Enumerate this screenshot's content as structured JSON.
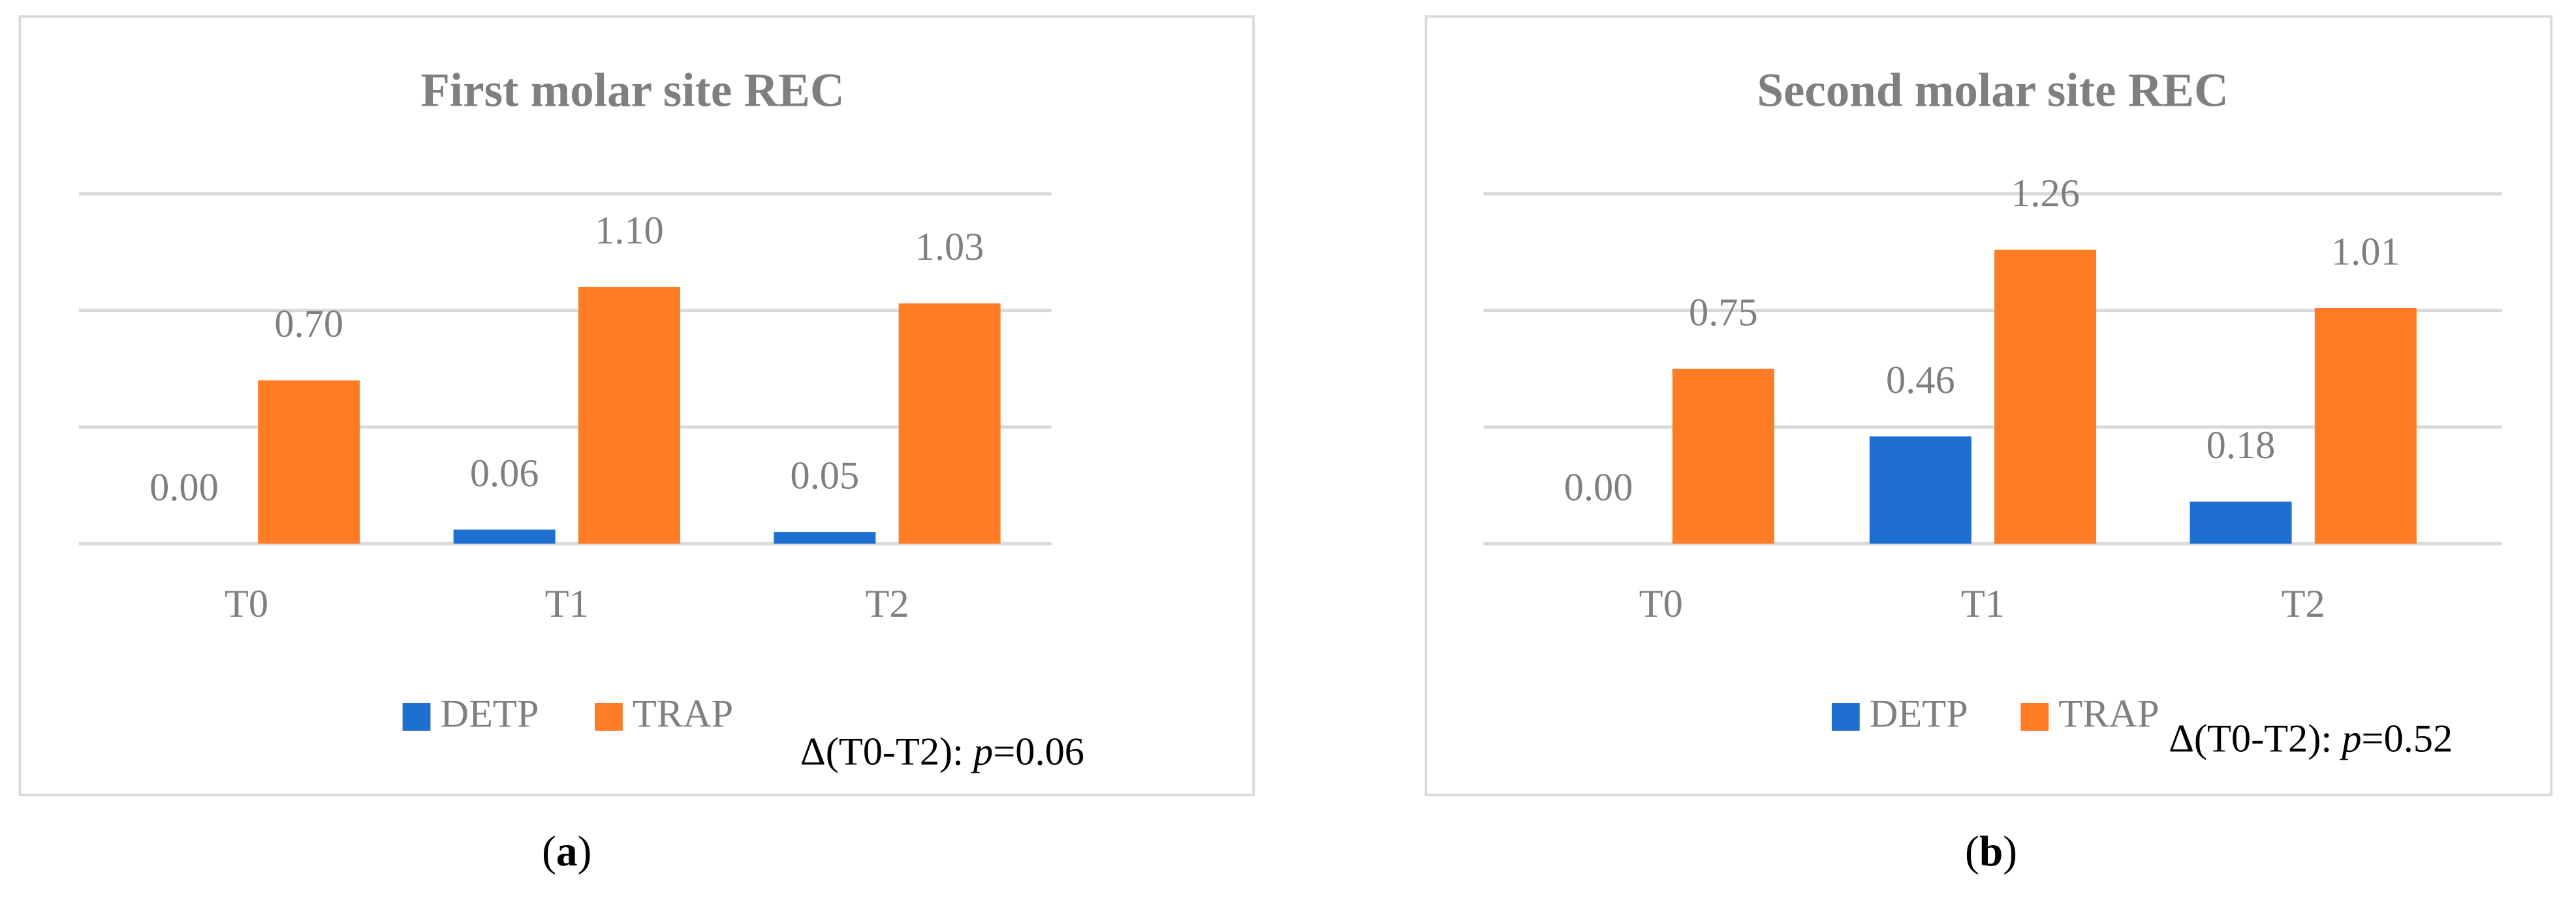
{
  "chart_data": [
    {
      "type": "bar",
      "title": "First molar site REC",
      "categories": [
        "T0",
        "T1",
        "T2"
      ],
      "series": [
        {
          "name": "DETP",
          "color": "#1f6fd0",
          "values": [
            0,
            0.06,
            0.05
          ],
          "value_labels": [
            "0.00",
            "0.06",
            "0.05"
          ]
        },
        {
          "name": "TRAP",
          "color": "#ff7b24",
          "values": [
            0.7,
            1.1,
            1.03
          ],
          "value_labels": [
            "0.70",
            "1.10",
            "1.03"
          ]
        }
      ],
      "ylim": [
        0,
        1.5
      ],
      "yticks": [
        0,
        0.5,
        1,
        1.5
      ],
      "grid": true,
      "legend": "bottom",
      "annotation": [
        "Δ(T0-T2): ",
        "p",
        "=0.06"
      ],
      "panel_label": [
        "(",
        "a",
        ")"
      ]
    },
    {
      "type": "bar",
      "title": "Second molar site REC",
      "categories": [
        "T0",
        "T1",
        "T2"
      ],
      "series": [
        {
          "name": "DETP",
          "color": "#1f6fd0",
          "values": [
            0,
            0.46,
            0.18
          ],
          "value_labels": [
            "0.00",
            "0.46",
            "0.18"
          ]
        },
        {
          "name": "TRAP",
          "color": "#ff7b24",
          "values": [
            0.75,
            1.26,
            1.01
          ],
          "value_labels": [
            "0.75",
            "1.26",
            "1.01"
          ]
        }
      ],
      "ylim": [
        0,
        1.5
      ],
      "yticks": [
        0,
        0.5,
        1,
        1.5
      ],
      "grid": true,
      "legend": "bottom",
      "annotation": [
        "Δ(T0-T2): ",
        "p",
        "=0.52"
      ],
      "panel_label": [
        "(",
        "b",
        ")"
      ]
    }
  ]
}
